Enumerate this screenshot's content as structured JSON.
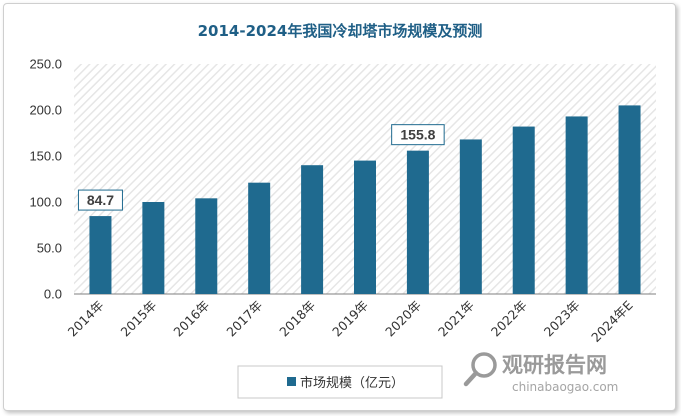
{
  "colors": {
    "bar": "#1f6a8f",
    "title": "#1f5f86",
    "label_border": "#1f6a8f",
    "axis": "#7f7f7f",
    "watermark": "#9a9a9a"
  },
  "chart_data": {
    "type": "bar",
    "title": "2014-2024年我国冷却塔市场规模及预测",
    "xlabel": "",
    "ylabel": "",
    "ylim": [
      0,
      250
    ],
    "yticks": [
      "0.0",
      "50.0",
      "100.0",
      "150.0",
      "200.0",
      "250.0"
    ],
    "categories": [
      "2014年",
      "2015年",
      "2016年",
      "2017年",
      "2018年",
      "2019年",
      "2020年",
      "2021年",
      "2022年",
      "2023年",
      "2024年E"
    ],
    "series": [
      {
        "name": "市场规模（亿元）",
        "values": [
          84.7,
          100,
          104,
          121,
          140,
          145,
          155.8,
          168,
          182,
          193,
          205
        ]
      }
    ],
    "data_labels": [
      {
        "index": 0,
        "text": "84.7"
      },
      {
        "index": 6,
        "text": "155.8"
      }
    ],
    "legend": "bottom",
    "grid": false,
    "background": "hatched"
  },
  "watermark": {
    "name": "观研报告网",
    "url": "chinabaogao.com",
    "logo_icon": "search-magnifier-icon"
  }
}
